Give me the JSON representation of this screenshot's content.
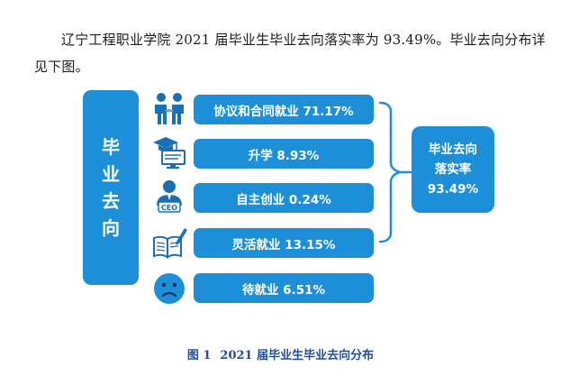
{
  "paragraph": "辽宁工程职业学院 2021 届毕业生毕业去向落实率为 93.49%。毕业去向分布详见下图。",
  "diagram": {
    "left_label_chars": [
      "毕",
      "业",
      "去",
      "向"
    ],
    "items": [
      {
        "label": "协议和合同就业 71.17%",
        "icon": "handshake-people-icon"
      },
      {
        "label": "升学 8.93%",
        "icon": "graduation-cap-icon"
      },
      {
        "label": "自主创业 0.24%",
        "icon": "ceo-icon"
      },
      {
        "label": "灵活就业 13.15%",
        "icon": "book-pen-icon"
      },
      {
        "label": "待就业 6.51%",
        "icon": "sad-face-icon"
      }
    ],
    "summary_lines": [
      "毕业去向",
      "落实率",
      "93.49%"
    ],
    "accent_color": "#1d8fd9",
    "icon_color": "#1b6fb5"
  },
  "caption": {
    "figure_no": "图 1",
    "title": "2021 届毕业生毕业去向分布"
  }
}
